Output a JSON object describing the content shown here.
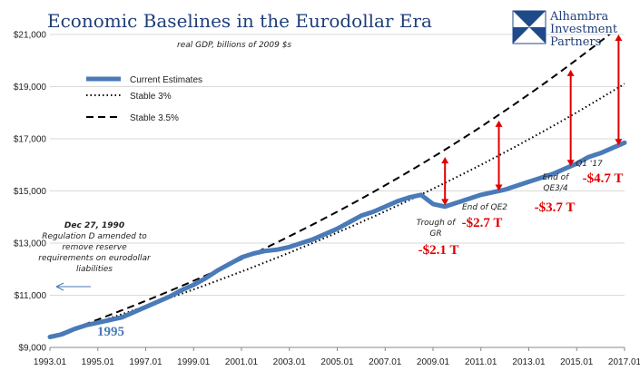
{
  "chart_data": {
    "type": "line",
    "title": "Economic Baselines in the Eurodollar Era",
    "subtitle": "real GDP, billions of 2009 $s",
    "xlim": [
      1993.0,
      2017.0
    ],
    "ylim": [
      9000,
      21000
    ],
    "y_ticks": [
      "$9,000",
      "$11,000",
      "$13,000",
      "$15,000",
      "$17,000",
      "$19,000",
      "$21,000"
    ],
    "y_tick_values": [
      9000,
      11000,
      13000,
      15000,
      17000,
      19000,
      21000
    ],
    "x_ticks": [
      "1993.01",
      "1995.01",
      "1997.01",
      "1999.01",
      "2001.01",
      "2003.01",
      "2005.01",
      "2007.01",
      "2009.01",
      "2011.01",
      "2013.01",
      "2015.01",
      "2017.01"
    ],
    "x_tick_values": [
      1993.0,
      1995.0,
      1997.0,
      1999.0,
      2001.0,
      2003.0,
      2005.0,
      2007.0,
      2009.0,
      2011.0,
      2013.0,
      2015.0,
      2017.0
    ],
    "grid": true,
    "legend_position": "top-left",
    "series": [
      {
        "name": "Current Estimates",
        "style": "solid-thick",
        "color": "#4a7ab8",
        "points": [
          [
            1993.0,
            9400
          ],
          [
            1993.5,
            9500
          ],
          [
            1994.0,
            9700
          ],
          [
            1994.5,
            9850
          ],
          [
            1995.0,
            9950
          ],
          [
            1995.5,
            10050
          ],
          [
            1996.0,
            10150
          ],
          [
            1996.5,
            10350
          ],
          [
            1997.0,
            10550
          ],
          [
            1997.5,
            10750
          ],
          [
            1998.0,
            10950
          ],
          [
            1998.5,
            11200
          ],
          [
            1999.0,
            11400
          ],
          [
            1999.5,
            11650
          ],
          [
            2000.0,
            11950
          ],
          [
            2000.5,
            12200
          ],
          [
            2001.0,
            12450
          ],
          [
            2001.5,
            12600
          ],
          [
            2002.0,
            12700
          ],
          [
            2002.5,
            12750
          ],
          [
            2003.0,
            12850
          ],
          [
            2003.5,
            13000
          ],
          [
            2004.0,
            13150
          ],
          [
            2004.5,
            13350
          ],
          [
            2005.0,
            13550
          ],
          [
            2005.5,
            13800
          ],
          [
            2006.0,
            14050
          ],
          [
            2006.5,
            14200
          ],
          [
            2007.0,
            14400
          ],
          [
            2007.5,
            14600
          ],
          [
            2008.0,
            14750
          ],
          [
            2008.5,
            14850
          ],
          [
            2009.0,
            14500
          ],
          [
            2009.5,
            14400
          ],
          [
            2010.0,
            14550
          ],
          [
            2010.5,
            14700
          ],
          [
            2011.0,
            14850
          ],
          [
            2011.5,
            14950
          ],
          [
            2012.0,
            15050
          ],
          [
            2012.5,
            15200
          ],
          [
            2013.0,
            15350
          ],
          [
            2013.5,
            15500
          ],
          [
            2014.0,
            15650
          ],
          [
            2014.5,
            15850
          ],
          [
            2015.0,
            16050
          ],
          [
            2015.5,
            16300
          ],
          [
            2016.0,
            16450
          ],
          [
            2016.5,
            16650
          ],
          [
            2017.0,
            16850
          ]
        ]
      },
      {
        "name": "Stable 3%",
        "style": "dotted",
        "color": "#000000",
        "start": [
          1993.0,
          9400
        ],
        "growth_rate": 0.03
      },
      {
        "name": "Stable 3.5%",
        "style": "dashed",
        "color": "#000000",
        "start": [
          1993.0,
          9400
        ],
        "growth_rate": 0.035
      }
    ],
    "gap_arrows": [
      {
        "x": 2009.5,
        "y_low": 14450,
        "y_high": 16300
      },
      {
        "x": 2011.75,
        "y_low": 15000,
        "y_high": 17700
      },
      {
        "x": 2014.75,
        "y_low": 15950,
        "y_high": 19650
      },
      {
        "x": 2016.75,
        "y_low": 16750,
        "y_high": 21000
      }
    ]
  },
  "annotations": {
    "regd_title": "Dec 27, 1990",
    "regd_lines": [
      "Regulation D amended to",
      "remove reserve",
      "requirements on eurodollar",
      "liabilities"
    ],
    "year_1995": "1995",
    "trough_lines": [
      "Trough of",
      "GR"
    ],
    "gap_1": "-$2.1 T",
    "qe2_label": "End of QE2",
    "gap_2": "-$2.7 T",
    "qe34_lines": [
      "End of",
      "QE3/4"
    ],
    "gap_3": "-$3.7 T",
    "q1_label": "Q1 '17",
    "gap_4": "-$4.7 T"
  },
  "logo": {
    "lines": [
      "Alhambra",
      "Investment",
      "Partners"
    ]
  },
  "colors": {
    "title": "#1f3f7a",
    "series_main": "#4a7ab8",
    "gap": "#e00000",
    "logo_mark": "#1f4a8a"
  }
}
